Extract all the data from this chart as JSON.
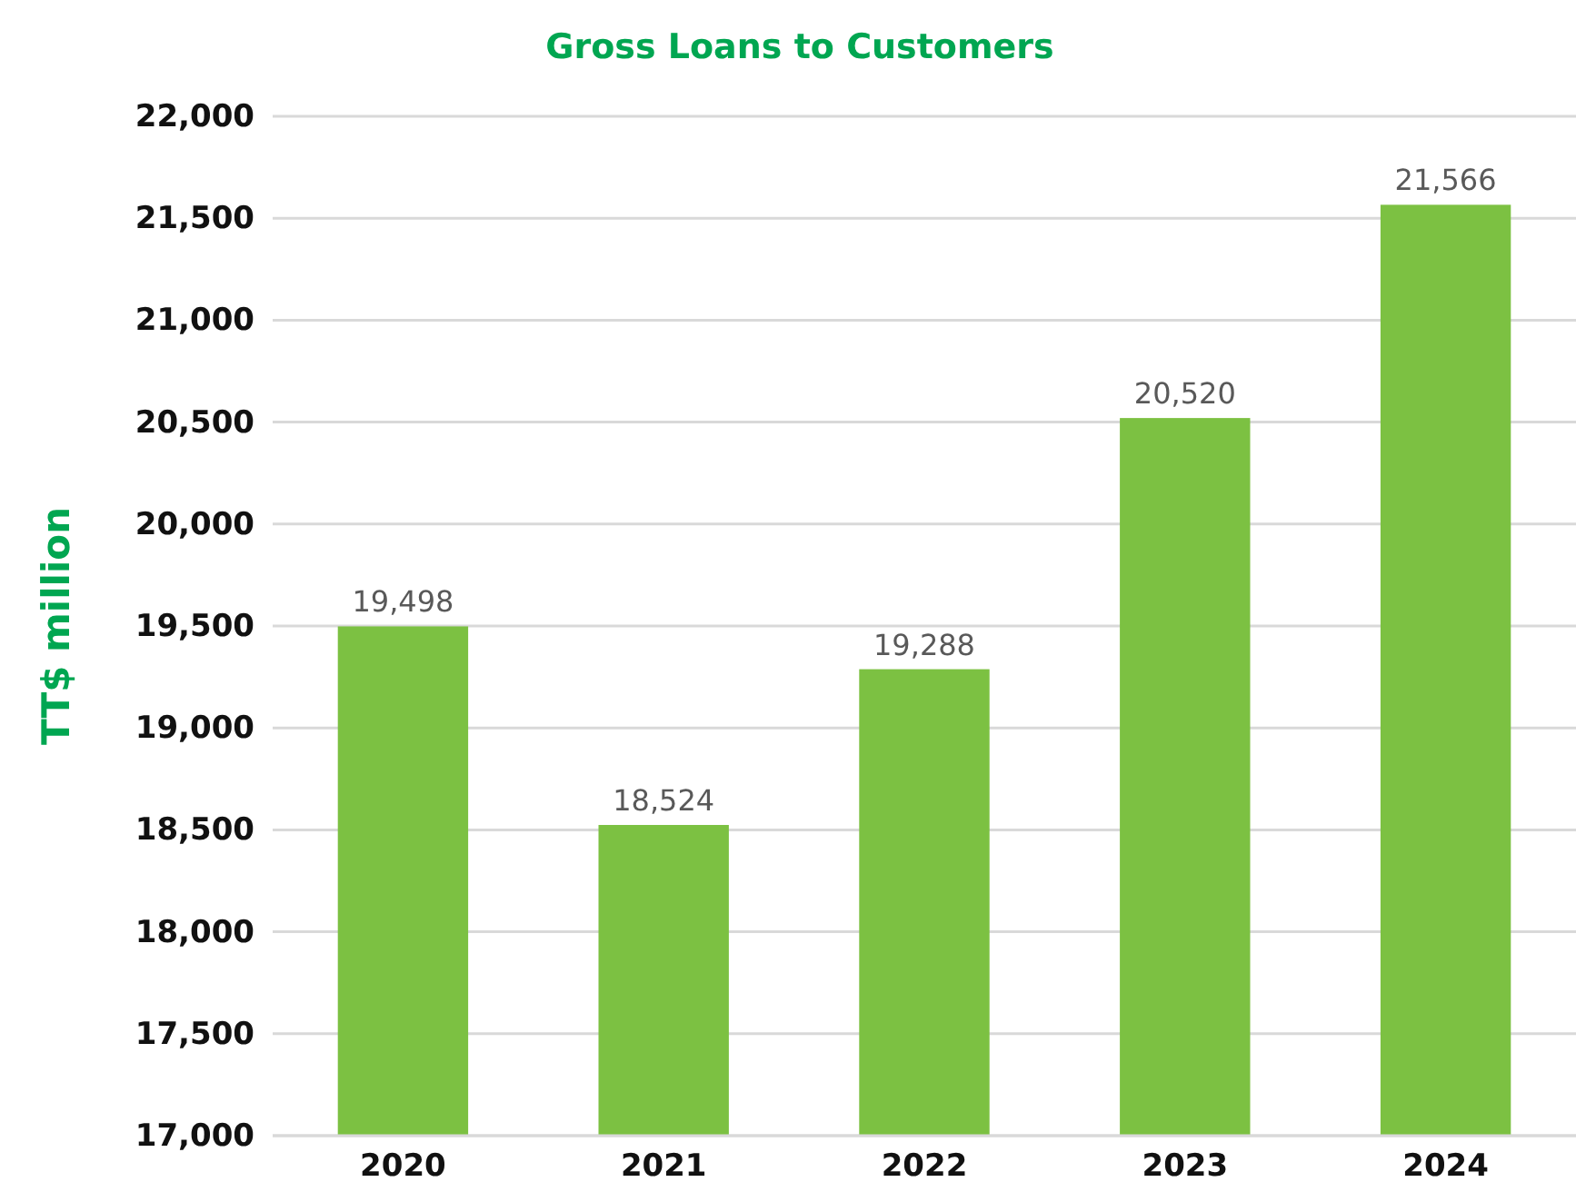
{
  "chart_data": {
    "type": "bar",
    "title": "Gross Loans to Customers",
    "ylabel": "TT$ million",
    "categories": [
      "2020",
      "2021",
      "2022",
      "2023",
      "2024"
    ],
    "values": [
      19498,
      18524,
      19288,
      20520,
      21566
    ],
    "color": "#7cc142",
    "ylim": [
      17000,
      22000
    ],
    "yticks": [
      {
        "value": 17000,
        "label": "17,000"
      },
      {
        "value": 17500,
        "label": "17,500"
      },
      {
        "value": 18000,
        "label": "18,000"
      },
      {
        "value": 18500,
        "label": "18,500"
      },
      {
        "value": 19000,
        "label": "19,000"
      },
      {
        "value": 19500,
        "label": "19,500"
      },
      {
        "value": 20000,
        "label": "20,000"
      },
      {
        "value": 20500,
        "label": "20,500"
      },
      {
        "value": 21000,
        "label": "21,000"
      },
      {
        "value": 21500,
        "label": "21,500"
      },
      {
        "value": 22000,
        "label": "22,000"
      }
    ],
    "grid": "y",
    "value_labels": [
      "19,498",
      "18,524",
      "19,288",
      "20,520",
      "21,566"
    ]
  }
}
